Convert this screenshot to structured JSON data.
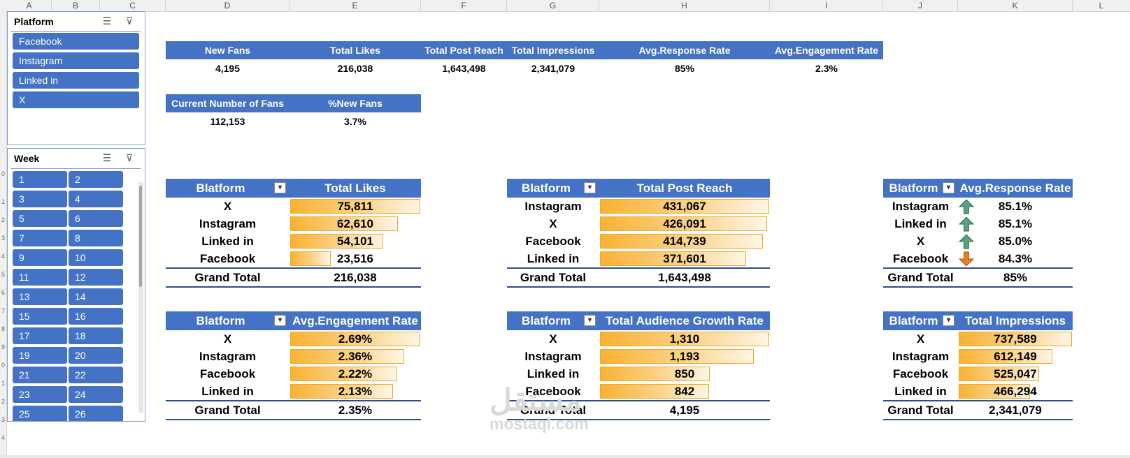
{
  "columns": [
    "A",
    "B",
    "C",
    "D",
    "E",
    "F",
    "G",
    "H",
    "I",
    "J",
    "K",
    "L"
  ],
  "rows": [
    "0",
    "1",
    "2",
    "3",
    "4",
    "5",
    "6",
    "7",
    "8",
    "9",
    "0",
    "1",
    "2",
    "3",
    "4"
  ],
  "slicer_platform": {
    "title": "Platform",
    "items": [
      "Facebook",
      "Instagram",
      "Linked in",
      "X"
    ]
  },
  "slicer_week": {
    "title": "Week",
    "items": [
      "1",
      "2",
      "3",
      "4",
      "5",
      "6",
      "7",
      "8",
      "9",
      "10",
      "11",
      "12",
      "13",
      "14",
      "15",
      "16",
      "17",
      "18",
      "19",
      "20",
      "21",
      "22",
      "23",
      "24",
      "25",
      "26"
    ]
  },
  "kpi_row1": {
    "headers": [
      "New Fans",
      "Total Likes",
      "Total Post Reach",
      "Total Impressions",
      "Avg.Response Rate",
      "Avg.Engagement Rate"
    ],
    "values": [
      "4,195",
      "216,038",
      "1,643,498",
      "2,341,079",
      "85%",
      "2.3%"
    ]
  },
  "kpi_row2": {
    "headers": [
      "Current Number of Fans",
      "%New Fans"
    ],
    "values": [
      "112,153",
      "3.7%"
    ]
  },
  "pivot_likes": {
    "col1": "Blatform",
    "col2": "Total Likes",
    "rows": [
      {
        "label": "X",
        "value": "75,811",
        "fill": 1.0
      },
      {
        "label": "Instagram",
        "value": "62,610",
        "fill": 0.826
      },
      {
        "label": "Linked in",
        "value": "54,101",
        "fill": 0.714
      },
      {
        "label": "Facebook",
        "value": "23,516",
        "fill": 0.31
      }
    ],
    "total_label": "Grand Total",
    "total_value": "216,038"
  },
  "pivot_reach": {
    "col1": "Blatform",
    "col2": "Total Post Reach",
    "rows": [
      {
        "label": "Instagram",
        "value": "431,067",
        "fill": 1.0
      },
      {
        "label": "X",
        "value": "426,091",
        "fill": 0.988
      },
      {
        "label": "Facebook",
        "value": "414,739",
        "fill": 0.962
      },
      {
        "label": "Linked in",
        "value": "371,601",
        "fill": 0.862
      }
    ],
    "total_label": "Grand Total",
    "total_value": "1,643,498"
  },
  "pivot_response": {
    "col1": "Blatform",
    "col2": "Avg.Response Rate",
    "rows": [
      {
        "label": "Instagram",
        "value": "85.1%",
        "arrow": "up"
      },
      {
        "label": "Linked in",
        "value": "85.1%",
        "arrow": "up"
      },
      {
        "label": "X",
        "value": "85.0%",
        "arrow": "up"
      },
      {
        "label": "Facebook",
        "value": "84.3%",
        "arrow": "down"
      }
    ],
    "total_label": "Grand Total",
    "total_value": "85%"
  },
  "pivot_engagement": {
    "col1": "Blatform",
    "col2": "Avg.Engagement Rate",
    "rows": [
      {
        "label": "X",
        "value": "2.69%",
        "fill": 1.0
      },
      {
        "label": "Instagram",
        "value": "2.36%",
        "fill": 0.877
      },
      {
        "label": "Facebook",
        "value": "2.22%",
        "fill": 0.825
      },
      {
        "label": "Linked in",
        "value": "2.13%",
        "fill": 0.792
      }
    ],
    "total_label": "Grand Total",
    "total_value": "2.35%"
  },
  "pivot_growth": {
    "col1": "Blatform",
    "col2": "Total Audience Growth Rate",
    "rows": [
      {
        "label": "X",
        "value": "1,310",
        "fill": 1.0
      },
      {
        "label": "Instagram",
        "value": "1,193",
        "fill": 0.911
      },
      {
        "label": "Linked in",
        "value": "850",
        "fill": 0.649
      },
      {
        "label": "Facebook",
        "value": "842",
        "fill": 0.643
      }
    ],
    "total_label": "Grand Total",
    "total_value": "4,195"
  },
  "pivot_impressions": {
    "col1": "Blatform",
    "col2": "Total Impressions",
    "rows": [
      {
        "label": "X",
        "value": "737,589",
        "fill": 1.0
      },
      {
        "label": "Instagram",
        "value": "612,149",
        "fill": 0.83
      },
      {
        "label": "Facebook",
        "value": "525,047",
        "fill": 0.712
      },
      {
        "label": "Linked in",
        "value": "466,294",
        "fill": 0.632
      }
    ],
    "total_label": "Grand Total",
    "total_value": "2,341,079"
  },
  "watermark": {
    "arabic": "مستقل",
    "latin": "mostaql.com"
  },
  "colors": {
    "header_blue": "#4472c4",
    "bar_orange": "#f9b233",
    "arrow_up": "#5aa382",
    "arrow_down": "#e67e22"
  }
}
